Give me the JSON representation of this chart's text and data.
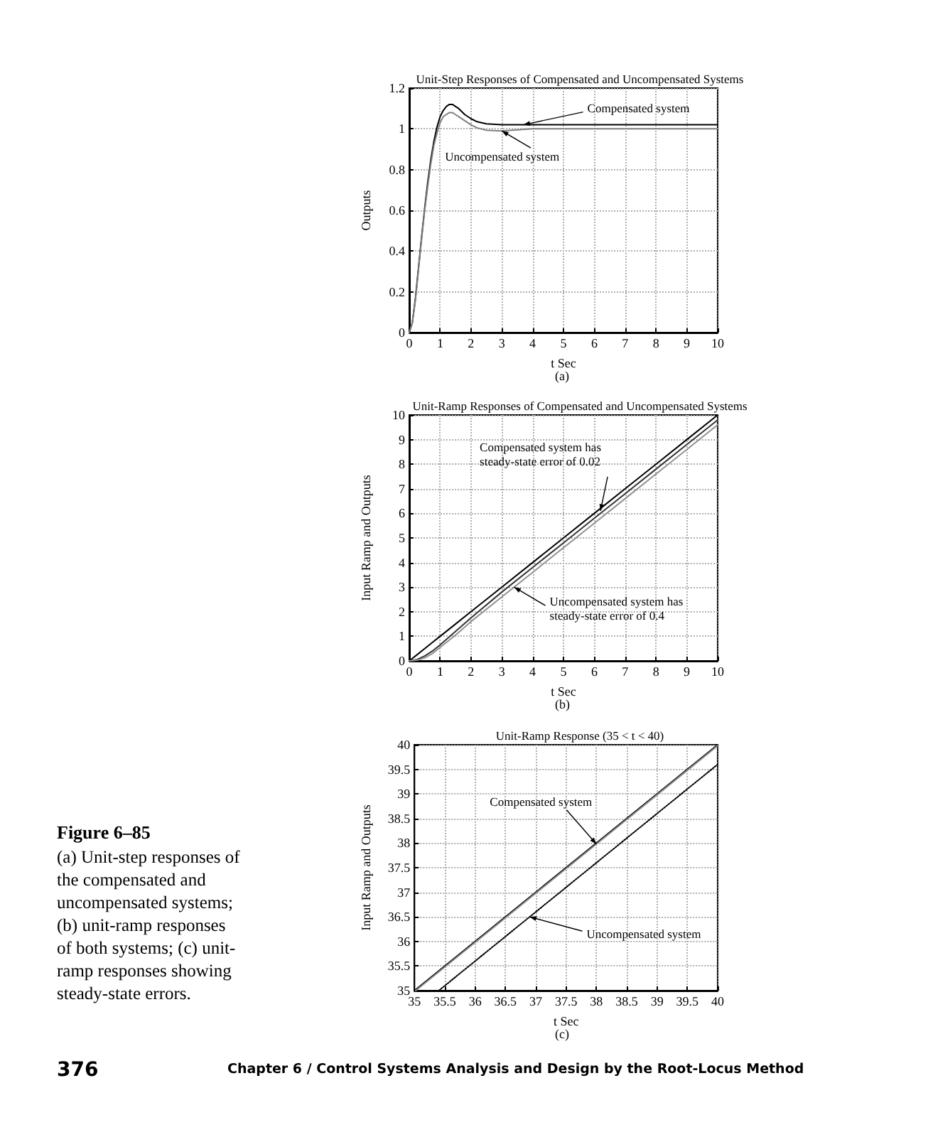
{
  "chart_data": [
    {
      "type": "line",
      "title": "Unit-Step Responses of Compensated and Uncompensated Systems",
      "xlabel": "t Sec",
      "ylabel": "Outputs",
      "x": [
        0,
        0.1,
        0.2,
        0.3,
        0.4,
        0.5,
        0.6,
        0.7,
        0.8,
        0.9,
        1.0,
        1.1,
        1.2,
        1.3,
        1.4,
        1.5,
        1.6,
        1.8,
        2.0,
        2.2,
        2.5,
        3,
        3.5,
        4,
        5,
        6,
        7,
        8,
        9,
        10
      ],
      "series": [
        {
          "color": "#000000",
          "line_style": "solid",
          "values": [
            0,
            0.05,
            0.17,
            0.32,
            0.47,
            0.61,
            0.74,
            0.85,
            0.94,
            1.01,
            1.06,
            1.09,
            1.11,
            1.12,
            1.12,
            1.11,
            1.1,
            1.07,
            1.05,
            1.035,
            1.025,
            1.02,
            1.02,
            1.02,
            1.02,
            1.02,
            1.02,
            1.02,
            1.02,
            1.02
          ]
        },
        {
          "color": "#808080",
          "line_style": "solid",
          "values": [
            0,
            0.05,
            0.16,
            0.31,
            0.46,
            0.6,
            0.72,
            0.83,
            0.92,
            0.98,
            1.03,
            1.06,
            1.07,
            1.08,
            1.08,
            1.07,
            1.06,
            1.04,
            1.02,
            1.005,
            0.993,
            0.99,
            0.995,
            1.0,
            1.0,
            1.0,
            1.0,
            1.0,
            1.0,
            1.0
          ]
        }
      ],
      "xlim": [
        0,
        10
      ],
      "xticks": [
        0,
        1,
        2,
        3,
        4,
        5,
        6,
        7,
        8,
        9,
        10
      ],
      "ylim": [
        0,
        1.2
      ],
      "yticks": [
        0,
        0.2,
        0.4,
        0.6,
        0.8,
        1,
        1.2
      ],
      "grid": true,
      "marker": "none",
      "annotations": [
        "(a)",
        {
          "text": "Compensated system",
          "x": 3.7,
          "y": 1.02
        },
        {
          "text": "Uncompensated system",
          "x": 3.0,
          "y": 0.99
        }
      ]
    },
    {
      "type": "line",
      "title": "Unit-Ramp Responses of Compensated and Uncompensated Systems",
      "xlabel": "t Sec",
      "ylabel": "Input Ramp and Outputs",
      "x": [
        0,
        0.25,
        0.5,
        0.75,
        1,
        1.5,
        2,
        3,
        4,
        5,
        6,
        7,
        8,
        9,
        10
      ],
      "series": [
        {
          "color": "#000000",
          "line_style": "solid",
          "values": [
            0,
            0.25,
            0.5,
            0.75,
            1,
            1.5,
            2,
            3,
            4,
            5,
            6,
            7,
            8,
            9,
            10
          ]
        },
        {
          "color": "#333333",
          "line_style": "solid",
          "values": [
            0,
            0.05,
            0.2,
            0.4,
            0.65,
            1.2,
            1.75,
            2.8,
            3.8,
            4.8,
            5.8,
            6.8,
            7.8,
            8.8,
            9.8
          ]
        },
        {
          "color": "#909090",
          "line_style": "solid",
          "values": [
            0,
            0.03,
            0.12,
            0.3,
            0.55,
            1.05,
            1.6,
            2.6,
            3.6,
            4.6,
            5.6,
            6.6,
            7.6,
            8.6,
            9.6
          ]
        }
      ],
      "xlim": [
        0,
        10
      ],
      "xticks": [
        0,
        1,
        2,
        3,
        4,
        5,
        6,
        7,
        8,
        9,
        10
      ],
      "ylim": [
        0,
        10
      ],
      "yticks": [
        0,
        1,
        2,
        3,
        4,
        5,
        6,
        7,
        8,
        9,
        10
      ],
      "grid": true,
      "marker": "none",
      "annotations": [
        "(b)",
        {
          "text": "Compensated system has steady-state error of 0.02",
          "x": 6.2,
          "y": 6.1
        },
        {
          "text": "Uncompensated system has steady-state error of 0.4",
          "x": 3.4,
          "y": 3.0
        }
      ]
    },
    {
      "type": "line",
      "title": "Unit-Ramp Response (35 < t < 40)",
      "xlabel": "t Sec",
      "ylabel": "Input Ramp and Outputs",
      "series": [
        {
          "x": [
            35,
            40
          ],
          "color": "#000000",
          "line_style": "solid",
          "values": [
            35,
            40
          ]
        },
        {
          "x": [
            35.02,
            40
          ],
          "color": "#8c8c8c",
          "line_style": "solid",
          "values": [
            35,
            39.98
          ]
        },
        {
          "x": [
            35.4,
            40
          ],
          "color": "#000000",
          "line_style": "dotted",
          "values": [
            35,
            39.6
          ]
        }
      ],
      "xlim": [
        35,
        40
      ],
      "xticks": [
        35,
        35.5,
        36,
        36.5,
        37,
        37.5,
        38,
        38.5,
        39,
        39.5,
        40
      ],
      "ylim": [
        35,
        40
      ],
      "yticks": [
        35,
        35.5,
        36,
        36.5,
        37,
        37.5,
        38,
        38.5,
        39,
        39.5,
        40
      ],
      "grid": true,
      "marker": "none",
      "annotations": [
        "(c)",
        {
          "text": "Compensated system",
          "x": 38,
          "y": 37.98
        },
        {
          "text": "Uncompensated system",
          "x": 36.9,
          "y": 36.5
        },
        "Figure 6–85",
        "(a) Unit-step responses of the compensated and uncompensated systems; (b) unit-ramp responses of both systems; (c) unit-ramp responses showing steady-state errors.",
        "376",
        "Chapter 6 / Control Systems Analysis and Design by the Root-Locus Method"
      ]
    }
  ]
}
